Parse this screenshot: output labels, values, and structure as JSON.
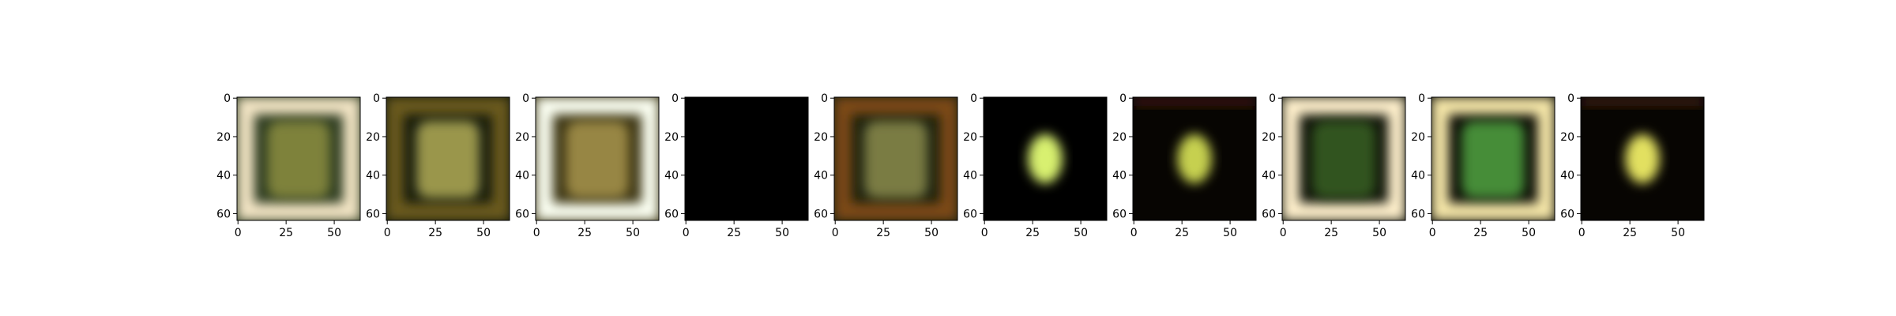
{
  "chart_data": {
    "type": "heatmap",
    "image_grid": {
      "panel_count": 10,
      "axis_range_data_units": {
        "x": [
          0,
          63
        ],
        "y": [
          63,
          0
        ]
      },
      "x_tick_labels": [
        "0",
        "25",
        "50"
      ],
      "y_tick_labels": [
        "0",
        "20",
        "40",
        "60"
      ],
      "x_ticks": [
        0,
        25,
        50
      ],
      "y_ticks": [
        0,
        20,
        40,
        60
      ],
      "panels": [
        {
          "index": 1,
          "style": "frame",
          "frame": "#f2e4c4",
          "fill": "#2b3a20",
          "blob": "#9a9a45"
        },
        {
          "index": 2,
          "style": "frame",
          "frame": "#6b5a1e",
          "fill": "#161b0e",
          "blob": "#c6c060"
        },
        {
          "index": 3,
          "style": "frame",
          "frame": "#fbfff2",
          "fill": "#3a3312",
          "blob": "#b7a255"
        },
        {
          "index": 4,
          "style": "blank",
          "frame": "#000000",
          "fill": "#000000",
          "blob": "#000000"
        },
        {
          "index": 5,
          "style": "frame",
          "frame": "#7d4a18",
          "fill": "#1d2210",
          "blob": "#9a9a55"
        },
        {
          "index": 6,
          "style": "spot",
          "frame": "#000000",
          "fill": "#000000",
          "blob": "#d8f070"
        },
        {
          "index": 7,
          "style": "spot",
          "frame": "#3a1808",
          "fill": "#070502",
          "blob": "#c6d050"
        },
        {
          "index": 8,
          "style": "frame",
          "frame": "#fff0cc",
          "fill": "#10140a",
          "blob": "#3c6a25"
        },
        {
          "index": 9,
          "style": "frame",
          "frame": "#f5e6a8",
          "fill": "#0b0c06",
          "blob": "#5ab84a"
        },
        {
          "index": 10,
          "style": "spot",
          "frame": "#3a1a08",
          "fill": "#070502",
          "blob": "#e2e060"
        }
      ]
    }
  }
}
